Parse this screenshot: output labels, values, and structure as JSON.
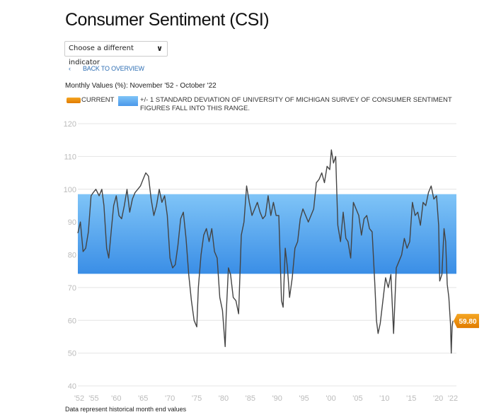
{
  "header": {
    "title": "Consumer Sentiment (CSI)"
  },
  "dropdown": {
    "label": "Choose a different indicator",
    "icon": "chevron-down-icon"
  },
  "back_link": {
    "icon": "chevron-left-icon",
    "label": "BACK TO OVERVIEW"
  },
  "subtitle": "Monthly Values (%): November '52 - October '22",
  "legend": {
    "current": "CURRENT",
    "band": "+/- 1 STANDARD DEVIATION OF UNIVERSITY OF MICHIGAN SURVEY OF CONSUMER SENTIMENT FIGURES FALL INTO THIS RANGE."
  },
  "footer": "Data represent historical month end values",
  "colors": {
    "line": "#444444",
    "band_top": "#7fc4f7",
    "band_bottom": "#3a8ee6",
    "current": "#e88a00",
    "grid": "#e4e4e4",
    "axis_text": "#bbbbbb",
    "link": "#2f6fb4"
  },
  "chart_data": {
    "type": "line",
    "ylim": [
      40,
      120
    ],
    "yticks": [
      "40",
      "50",
      "60",
      "70",
      "80",
      "90",
      "100",
      "110",
      "120"
    ],
    "xlim": [
      1952.83,
      2022.75
    ],
    "xticks": [
      {
        "year": 1952.83,
        "label": "'52"
      },
      {
        "year": 1955,
        "label": "'55"
      },
      {
        "year": 1960,
        "label": "'60"
      },
      {
        "year": 1965,
        "label": "'65"
      },
      {
        "year": 1970,
        "label": "'70"
      },
      {
        "year": 1975,
        "label": "'75"
      },
      {
        "year": 1980,
        "label": "'80"
      },
      {
        "year": 1985,
        "label": "'85"
      },
      {
        "year": 1990,
        "label": "'90"
      },
      {
        "year": 1995,
        "label": "'95"
      },
      {
        "year": 2000,
        "label": "'00"
      },
      {
        "year": 2005,
        "label": "'05"
      },
      {
        "year": 2010,
        "label": "'10"
      },
      {
        "year": 2015,
        "label": "'15"
      },
      {
        "year": 2020,
        "label": "'20"
      },
      {
        "year": 2022.75,
        "label": "'22"
      }
    ],
    "band": [
      74.2,
      98.5
    ],
    "current": {
      "value": 59.8,
      "label": "59.80"
    },
    "grid": true,
    "series": [
      {
        "x": [
          1952.83,
          1953.3,
          1953.8,
          1954.3,
          1954.8,
          1955.3,
          1955.7,
          1956.2,
          1956.8,
          1957.3,
          1957.7,
          1958.2,
          1958.6,
          1959.1,
          1959.5,
          1960.0,
          1960.5,
          1961.0,
          1961.5,
          1962.0,
          1962.5,
          1963.0,
          1963.5,
          1964.0,
          1964.5,
          1965.0,
          1965.5,
          1966.0,
          1966.5,
          1967.0,
          1967.5,
          1968.0,
          1968.5,
          1969.0,
          1969.5,
          1970.0,
          1970.5,
          1971.0,
          1971.5,
          1972.0,
          1972.5,
          1973.0,
          1973.5,
          1974.0,
          1974.5,
          1975.0,
          1975.3,
          1975.8,
          1976.3,
          1976.8,
          1977.3,
          1977.8,
          1978.3,
          1978.8,
          1979.3,
          1979.8,
          1980.3,
          1980.5,
          1980.9,
          1981.3,
          1981.8,
          1982.3,
          1982.8,
          1983.3,
          1983.8,
          1984.3,
          1984.8,
          1985.3,
          1985.8,
          1986.3,
          1986.8,
          1987.3,
          1987.8,
          1988.3,
          1988.8,
          1989.3,
          1989.8,
          1990.3,
          1990.8,
          1991.1,
          1991.5,
          1991.9,
          1992.3,
          1992.8,
          1993.3,
          1993.8,
          1994.3,
          1994.8,
          1995.3,
          1995.8,
          1996.3,
          1996.8,
          1997.3,
          1997.8,
          1998.3,
          1998.8,
          1999.3,
          1999.8,
          2000.1,
          2000.5,
          2000.9,
          2001.3,
          2001.8,
          2002.3,
          2002.8,
          2003.2,
          2003.7,
          2004.2,
          2004.7,
          2005.2,
          2005.7,
          2006.2,
          2006.7,
          2007.2,
          2007.7,
          2008.2,
          2008.5,
          2008.8,
          2009.2,
          2009.7,
          2010.2,
          2010.7,
          2011.2,
          2011.7,
          2012.2,
          2012.7,
          2013.2,
          2013.7,
          2014.2,
          2014.7,
          2015.2,
          2015.7,
          2016.2,
          2016.7,
          2017.2,
          2017.7,
          2018.2,
          2018.7,
          2019.2,
          2019.7,
          2020.1,
          2020.3,
          2020.7,
          2021.1,
          2021.4,
          2021.7,
          2022.0,
          2022.3,
          2022.45,
          2022.6,
          2022.75
        ],
        "y": [
          86.6,
          90,
          81,
          82,
          87,
          98,
          99,
          100,
          98,
          100,
          95,
          82,
          79,
          88,
          95,
          98,
          92,
          91,
          95,
          100,
          93,
          97,
          99,
          100,
          101,
          103,
          105,
          104,
          97,
          92,
          95,
          100,
          96,
          98,
          92,
          79,
          76,
          77,
          83,
          91,
          93,
          85,
          74,
          66,
          60,
          58,
          70,
          80,
          86,
          88,
          84,
          88,
          81,
          79,
          67,
          63,
          52,
          62,
          76,
          74,
          67,
          66,
          62,
          86,
          90,
          101,
          96,
          92,
          94,
          96,
          93,
          91,
          92,
          98,
          92,
          96,
          92,
          92,
          66,
          64,
          82,
          76,
          67,
          73,
          82,
          84,
          91,
          94,
          92,
          90,
          92,
          94,
          102,
          103,
          105,
          102,
          107,
          106,
          112,
          108,
          110,
          89,
          84,
          93,
          85,
          84,
          79,
          96,
          94,
          92,
          86,
          91,
          92,
          88,
          87,
          71,
          60,
          56,
          59,
          66,
          73,
          70,
          74,
          56,
          76,
          78,
          80,
          85,
          82,
          84,
          96,
          92,
          93,
          89,
          96,
          95,
          99,
          101,
          97,
          98,
          89,
          72,
          74,
          88,
          84,
          71,
          67,
          59,
          50,
          58,
          59.8
        ]
      }
    ]
  }
}
